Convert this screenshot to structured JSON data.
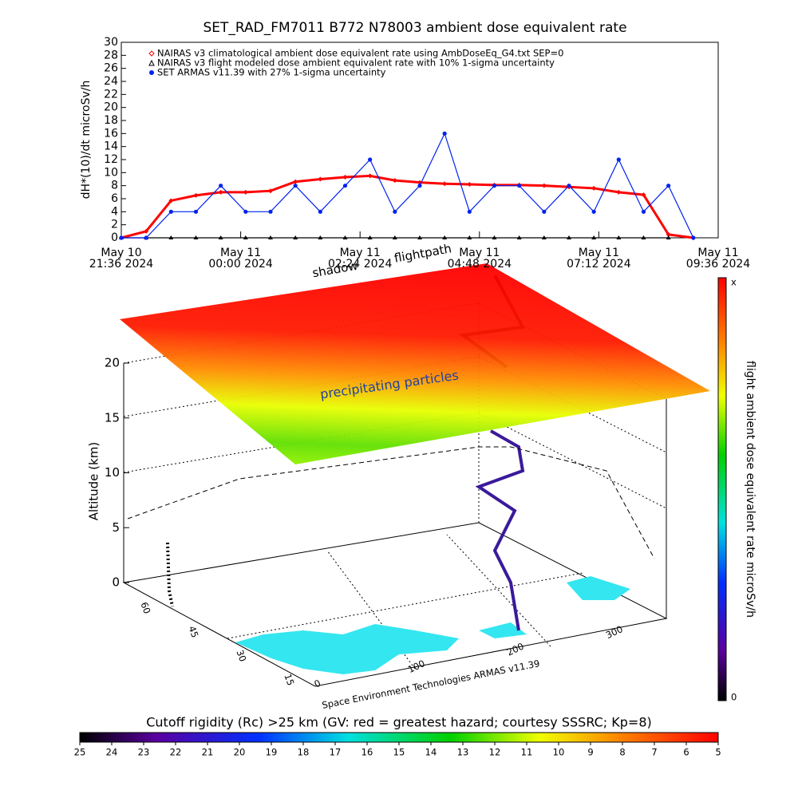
{
  "chart_data": [
    {
      "type": "line",
      "title": "SET_RAD_FM7011  B772 N78003 ambient dose equivalent rate",
      "ylabel": "dH*(10)/dt microSv/h",
      "x": [
        "2024-05-10T21:36",
        "2024-05-10T22:06",
        "2024-05-10T22:36",
        "2024-05-10T23:06",
        "2024-05-10T23:36",
        "2024-05-11T00:06",
        "2024-05-11T00:36",
        "2024-05-11T01:06",
        "2024-05-11T01:36",
        "2024-05-11T02:06",
        "2024-05-11T02:36",
        "2024-05-11T03:06",
        "2024-05-11T03:36",
        "2024-05-11T04:06",
        "2024-05-11T04:36",
        "2024-05-11T05:06",
        "2024-05-11T05:36",
        "2024-05-11T06:06",
        "2024-05-11T06:36",
        "2024-05-11T07:06",
        "2024-05-11T07:36",
        "2024-05-11T08:06",
        "2024-05-11T08:36",
        "2024-05-11T09:06"
      ],
      "series": [
        {
          "name": "NAIRAS v3 climatological ambient dose equivalent rate using AmbDoseEq_G4.txt SEP=0",
          "color": "#ff0000",
          "marker": "diamond",
          "values": [
            0,
            1,
            5.7,
            6.5,
            7,
            7,
            7.2,
            8.6,
            9,
            9.3,
            9.5,
            8.8,
            8.5,
            8.3,
            8.2,
            8.1,
            8.1,
            8,
            7.8,
            7.6,
            7,
            6.6,
            0.5,
            0
          ]
        },
        {
          "name": "NAIRAS v3 flight modeled dose ambient equivalent rate with 10% 1-sigma uncertainty",
          "color": "#000000",
          "marker": "triangle",
          "values": [
            0,
            0,
            0,
            0,
            0,
            0,
            0,
            0,
            0,
            0,
            0,
            0,
            0,
            0,
            0,
            0,
            0,
            0,
            0,
            0,
            0,
            0,
            0,
            null
          ]
        },
        {
          "name": "SET ARMAS v11.39 with 27% 1-sigma uncertainty",
          "color": "#0022ee",
          "marker": "dot",
          "values": [
            0,
            0,
            4,
            4,
            8,
            4,
            4,
            8,
            4,
            8,
            12,
            4,
            8,
            16,
            4,
            8,
            8,
            4,
            8,
            4,
            12,
            4,
            8,
            0
          ]
        }
      ],
      "xlim": [
        "2024-05-10T21:36",
        "2024-05-11T09:36"
      ],
      "xticks": [
        {
          "value": "2024-05-10T21:36",
          "label": "May 10\n21:36 2024"
        },
        {
          "value": "2024-05-11T00:00",
          "label": "May 11\n00:00 2024"
        },
        {
          "value": "2024-05-11T02:24",
          "label": "May 11\n02:24 2024"
        },
        {
          "value": "2024-05-11T04:48",
          "label": "May 11\n04:48 2024"
        },
        {
          "value": "2024-05-11T07:12",
          "label": "May 11\n07:12 2024"
        },
        {
          "value": "2024-05-11T09:36",
          "label": "May 11\n09:36 2024"
        }
      ],
      "ylim": [
        0,
        30
      ],
      "yticks": [
        0,
        2,
        4,
        6,
        8,
        10,
        12,
        14,
        16,
        18,
        20,
        22,
        24,
        26,
        28,
        30
      ]
    },
    {
      "type": "surface3d",
      "zlabel": "Altitude (km)",
      "zticks": [
        0,
        5,
        10,
        15,
        20
      ],
      "xticks": [
        0,
        100,
        200,
        300
      ],
      "yticks": [
        60,
        45,
        30,
        15
      ],
      "annotations": [
        "precipitating particles",
        "shadow",
        "flightpath"
      ],
      "credit": "Space Environment Technologies ARMAS v11.39",
      "colorbar": {
        "label": "flight ambient dose equivalent rate microSv/h",
        "top_label": "x",
        "bottom_label": "0"
      }
    },
    {
      "type": "colorbar",
      "title": "Cutoff rigidity (Rc) >25 km (GV: red = greatest hazard; courtesy SSSRC; Kp=8)",
      "xlim": [
        25,
        5
      ],
      "xticks": [
        25,
        24,
        23,
        22,
        21,
        20,
        19,
        18,
        17,
        16,
        15,
        14,
        13,
        12,
        11,
        10,
        9,
        8,
        7,
        6,
        5
      ]
    }
  ]
}
